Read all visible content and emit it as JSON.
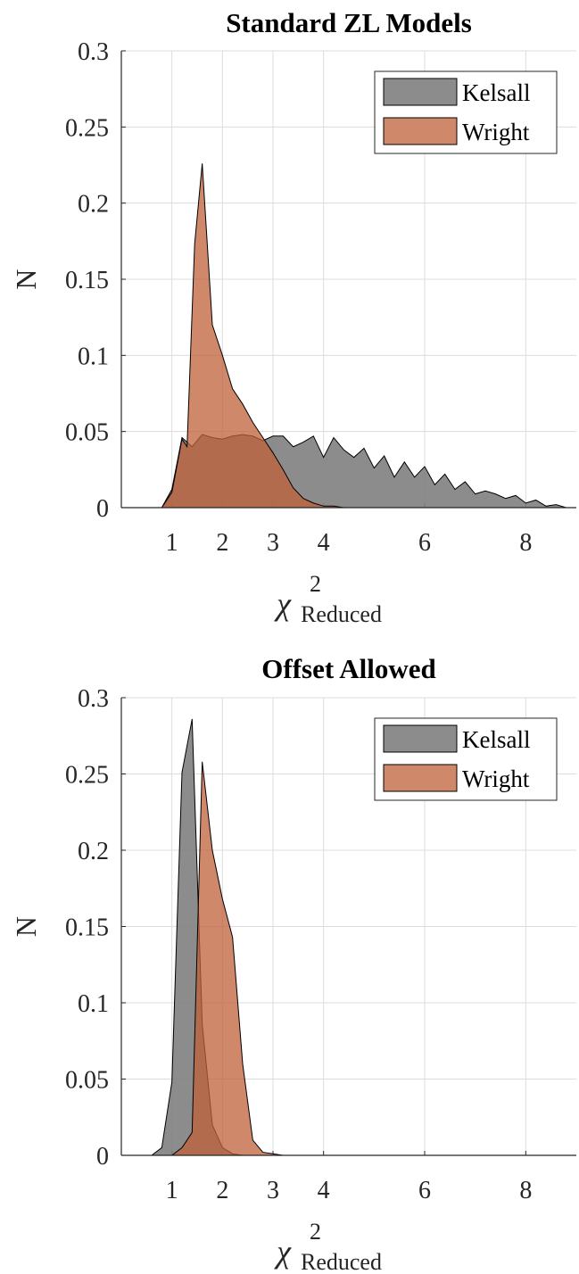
{
  "chart_data": [
    {
      "type": "area",
      "title": "Standard ZL Models",
      "ylabel": "N",
      "xlabel": "χ",
      "xlabel_sup": "2",
      "xlabel_sub": "Reduced",
      "xlim": [
        0,
        9
      ],
      "xticks": [
        1,
        2,
        3,
        4,
        6,
        8
      ],
      "ylim": [
        0,
        0.3
      ],
      "yticks": [
        0,
        0.05,
        0.1,
        0.15,
        0.2,
        0.25,
        0.3
      ],
      "grid": true,
      "legend": "upper right",
      "series": [
        {
          "name": "Kelsall",
          "color": "#808080",
          "alpha": 0.9,
          "x": [
            0.8,
            1.0,
            1.2,
            1.4,
            1.6,
            1.8,
            2.0,
            2.2,
            2.4,
            2.6,
            2.8,
            3.0,
            3.2,
            3.4,
            3.6,
            3.8,
            4.0,
            4.2,
            4.4,
            4.6,
            4.8,
            5.0,
            5.2,
            5.4,
            5.6,
            5.8,
            6.0,
            6.2,
            6.4,
            6.6,
            6.8,
            7.0,
            7.2,
            7.4,
            7.6,
            7.8,
            8.0,
            8.2,
            8.4,
            8.6,
            8.8
          ],
          "values": [
            0,
            0.012,
            0.046,
            0.04,
            0.048,
            0.046,
            0.045,
            0.047,
            0.048,
            0.047,
            0.044,
            0.047,
            0.047,
            0.04,
            0.043,
            0.047,
            0.033,
            0.046,
            0.038,
            0.033,
            0.039,
            0.026,
            0.034,
            0.02,
            0.03,
            0.02,
            0.027,
            0.015,
            0.022,
            0.012,
            0.017,
            0.009,
            0.011,
            0.009,
            0.006,
            0.008,
            0.003,
            0.005,
            0.001,
            0.002,
            0
          ]
        },
        {
          "name": "Wright",
          "color": "#c0603a",
          "alpha": 0.75,
          "x": [
            0.8,
            1.0,
            1.2,
            1.3,
            1.45,
            1.6,
            1.8,
            2.0,
            2.2,
            2.4,
            2.6,
            2.8,
            3.0,
            3.2,
            3.4,
            3.6,
            3.8,
            4.0,
            4.2,
            4.4
          ],
          "values": [
            0,
            0.01,
            0.045,
            0.04,
            0.173,
            0.226,
            0.12,
            0.1,
            0.078,
            0.068,
            0.056,
            0.046,
            0.036,
            0.025,
            0.013,
            0.006,
            0.003,
            0.001,
            0.001,
            0
          ]
        }
      ]
    },
    {
      "type": "area",
      "title": "Offset Allowed",
      "ylabel": "N",
      "xlabel": "χ",
      "xlabel_sup": "2",
      "xlabel_sub": "Reduced",
      "xlim": [
        0,
        9
      ],
      "xticks": [
        1,
        2,
        3,
        4,
        6,
        8
      ],
      "ylim": [
        0,
        0.3
      ],
      "yticks": [
        0,
        0.05,
        0.1,
        0.15,
        0.2,
        0.25,
        0.3
      ],
      "grid": true,
      "legend": "upper right",
      "series": [
        {
          "name": "Kelsall",
          "color": "#808080",
          "alpha": 0.9,
          "x": [
            0.6,
            0.8,
            1.0,
            1.2,
            1.4,
            1.6,
            1.8,
            2.0,
            2.2,
            2.4,
            9.0
          ],
          "values": [
            0,
            0.005,
            0.048,
            0.251,
            0.286,
            0.086,
            0.02,
            0.005,
            0.001,
            0,
            0
          ]
        },
        {
          "name": "Wright",
          "color": "#c0603a",
          "alpha": 0.75,
          "x": [
            1.0,
            1.2,
            1.4,
            1.6,
            1.8,
            2.0,
            2.2,
            2.4,
            2.6,
            2.8,
            3.0,
            3.2,
            9.0
          ],
          "values": [
            0,
            0.005,
            0.015,
            0.258,
            0.2,
            0.168,
            0.143,
            0.06,
            0.01,
            0.002,
            0.001,
            0,
            0
          ]
        }
      ]
    }
  ]
}
